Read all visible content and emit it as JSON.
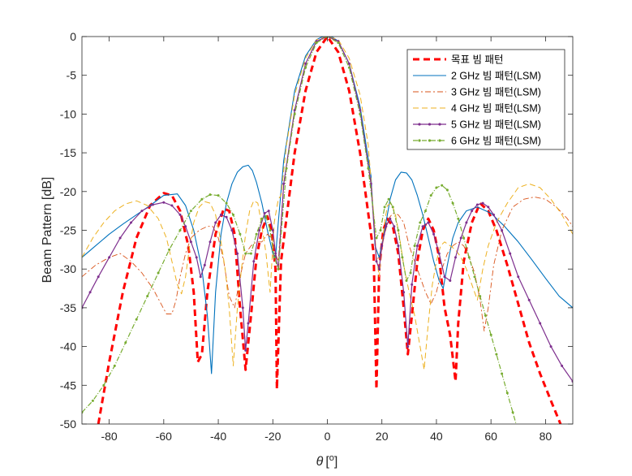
{
  "chart_data": {
    "type": "line",
    "xlabel": "θ [°]",
    "xlabel_parts": {
      "symbol": "θ",
      "open": "[",
      "sup": "o",
      "close": "]"
    },
    "ylabel": "Beam Pattern [dB]",
    "xlim": [
      -90,
      90
    ],
    "ylim": [
      -50,
      0
    ],
    "xticks": [
      -80,
      -60,
      -40,
      -20,
      0,
      20,
      40,
      60,
      80
    ],
    "yticks": [
      0,
      -5,
      -10,
      -15,
      -20,
      -25,
      -30,
      -35,
      -40,
      -45,
      -50
    ],
    "xtick_labels": [
      "-80",
      "-60",
      "-40",
      "-20",
      "0",
      "20",
      "40",
      "60",
      "80"
    ],
    "ytick_labels": [
      "0",
      "-5",
      "-10",
      "-15",
      "-20",
      "-25",
      "-30",
      "-35",
      "-40",
      "-45",
      "-50"
    ],
    "grid": false,
    "legend_position": "top-right",
    "series": [
      {
        "name": "목표 빔 패턴",
        "color": "#ff0000",
        "dash": "8,5",
        "width": 3,
        "marker": "none",
        "x": [
          -84,
          -80,
          -75,
          -70,
          -65,
          -60,
          -57,
          -54,
          -51,
          -49,
          -47.5,
          -46,
          -44,
          -41,
          -38,
          -36,
          -34,
          -32,
          -30,
          -28,
          -26,
          -24,
          -22,
          -20.5,
          -19,
          -18.5,
          -17,
          -12,
          -8,
          -4,
          0,
          4,
          8,
          12,
          17,
          18,
          19,
          20.5,
          22,
          24,
          26,
          28,
          29.5,
          31,
          33,
          35,
          37,
          39,
          41,
          43,
          45,
          47,
          48,
          50,
          53,
          56,
          59,
          62,
          66,
          70,
          74,
          78,
          82,
          85.5
        ],
        "y": [
          -50,
          -42,
          -33,
          -26,
          -21.8,
          -20.2,
          -20.5,
          -22.5,
          -27,
          -33,
          -42,
          -41,
          -33,
          -25.5,
          -22.2,
          -22.5,
          -25.5,
          -35,
          -43,
          -36,
          -28.5,
          -25,
          -23.2,
          -24.8,
          -30,
          -45.5,
          -29,
          -15,
          -7,
          -2,
          0,
          -2,
          -7,
          -15,
          -28,
          -45.5,
          -30,
          -25,
          -23.5,
          -24.5,
          -28,
          -35,
          -41,
          -36,
          -29,
          -25,
          -23.5,
          -25,
          -28.5,
          -35,
          -38.5,
          -44.5,
          -37,
          -29,
          -24,
          -21.5,
          -22.5,
          -25,
          -29.5,
          -34.5,
          -39.5,
          -43.5,
          -47,
          -50
        ]
      },
      {
        "name": "2  GHz 빔 패턴(LSM)",
        "color": "#0072bd",
        "dash": "",
        "width": 1.1,
        "marker": "none",
        "x": [
          -90,
          -85,
          -80,
          -75,
          -70,
          -65,
          -60,
          -55,
          -52,
          -49,
          -46,
          -44,
          -42.5,
          -41,
          -39,
          -37,
          -35,
          -33,
          -31,
          -29,
          -27.5,
          -26,
          -24,
          -22,
          -20,
          -19,
          -18,
          -16,
          -12,
          -8,
          -4,
          -2,
          0,
          2,
          4,
          8,
          12,
          16,
          17.5,
          19,
          21,
          23,
          25,
          27,
          29,
          31,
          33,
          35,
          37,
          39,
          41,
          42.5,
          44,
          46,
          48,
          51,
          55,
          60,
          65,
          70,
          75,
          80,
          85,
          90
        ],
        "y": [
          -28.5,
          -27,
          -25.5,
          -24.2,
          -23,
          -21.8,
          -20.5,
          -20.3,
          -21.8,
          -25,
          -30,
          -36,
          -43.5,
          -33,
          -25.5,
          -21.5,
          -19,
          -17.5,
          -16.8,
          -16.6,
          -17.3,
          -18.8,
          -21.5,
          -25,
          -28,
          -28.5,
          -24,
          -16,
          -7,
          -2.5,
          -0.4,
          -0.05,
          0,
          -0.1,
          -0.6,
          -3.5,
          -9,
          -18,
          -27,
          -28.5,
          -25,
          -21,
          -18.5,
          -17.5,
          -17.6,
          -18.5,
          -20.5,
          -23,
          -26,
          -29,
          -31.5,
          -32.5,
          -29.5,
          -26,
          -24,
          -22.5,
          -22,
          -22.8,
          -24.5,
          -26.5,
          -28.8,
          -31.2,
          -33.5,
          -35
        ]
      },
      {
        "name": "3  GHz 빔 패턴(LSM)",
        "color": "#d95319",
        "dash": "7,3,2,3",
        "width": 0.9,
        "marker": "none",
        "x": [
          -90,
          -85,
          -80,
          -76,
          -72,
          -68,
          -64,
          -61,
          -59,
          -57,
          -55.5,
          -54,
          -52,
          -50,
          -47,
          -44,
          -42,
          -40,
          -38,
          -36,
          -34,
          -32,
          -30,
          -28,
          -26,
          -24,
          -22,
          -20.5,
          -19,
          -18,
          -16,
          -12,
          -8,
          -4,
          0,
          4,
          8,
          12,
          16,
          18,
          19.5,
          21,
          22.5,
          24,
          26,
          28,
          30,
          33,
          36,
          38,
          40,
          42,
          44,
          46,
          48,
          50,
          52,
          54,
          56,
          57.5,
          59,
          61,
          64,
          68,
          72,
          76,
          80,
          84,
          88,
          90
        ],
        "y": [
          -31,
          -29.5,
          -28.5,
          -28,
          -29,
          -30.5,
          -32.5,
          -34.5,
          -35.8,
          -35.8,
          -34,
          -31,
          -28,
          -26,
          -25,
          -24.5,
          -24.5,
          -26,
          -29,
          -33.5,
          -35,
          -31,
          -28,
          -27,
          -26.5,
          -26.5,
          -25.5,
          -26,
          -28,
          -29,
          -19,
          -9.5,
          -3.5,
          -0.6,
          0,
          -0.6,
          -3.5,
          -9.5,
          -19,
          -29,
          -28,
          -25.5,
          -23.5,
          -22.8,
          -23,
          -24,
          -27,
          -30,
          -33,
          -34.5,
          -33,
          -30,
          -28,
          -27,
          -26.5,
          -27,
          -28.5,
          -30.5,
          -34,
          -38,
          -35,
          -29.5,
          -25,
          -22,
          -21,
          -20.7,
          -21,
          -22,
          -23.5,
          -24.5
        ]
      },
      {
        "name": "4  GHz 빔 패턴(LSM)",
        "color": "#edb120",
        "dash": "7,4",
        "width": 1.0,
        "marker": "none",
        "x": [
          -90,
          -86,
          -82,
          -78,
          -74,
          -70,
          -66,
          -62,
          -59,
          -57,
          -55,
          -53.5,
          -52,
          -50.5,
          -49,
          -47,
          -45,
          -43,
          -41,
          -39,
          -37.5,
          -36,
          -34.5,
          -33,
          -31.5,
          -30,
          -28.5,
          -27,
          -25.5,
          -24,
          -22.5,
          -21,
          -19.5,
          -18,
          -17,
          -15,
          -12,
          -8,
          -4,
          0,
          4,
          8,
          12,
          15,
          17,
          18,
          19,
          20,
          21,
          22,
          23.5,
          25,
          26.5,
          28,
          30,
          32,
          34,
          35.5,
          37,
          38.5,
          40,
          41.5,
          43,
          45,
          47,
          49,
          51,
          53,
          55,
          57,
          59,
          62,
          66,
          70,
          74,
          78,
          82,
          86,
          90
        ],
        "y": [
          -28.5,
          -26,
          -24,
          -22.5,
          -21.6,
          -21.2,
          -21.8,
          -23.5,
          -26,
          -29,
          -32,
          -33.2,
          -31,
          -27,
          -24,
          -22,
          -21.3,
          -21.5,
          -23,
          -26.5,
          -30,
          -35,
          -42.5,
          -35,
          -30,
          -25.5,
          -22.5,
          -21.2,
          -21.5,
          -24.5,
          -28,
          -33,
          -24,
          -21,
          -20.5,
          -14,
          -7.5,
          -2.8,
          -0.4,
          0,
          -0.4,
          -2.8,
          -7.5,
          -14,
          -23,
          -28.5,
          -31,
          -27,
          -24,
          -21.8,
          -21.5,
          -23,
          -26,
          -29.5,
          -33,
          -36,
          -40,
          -43,
          -37,
          -32,
          -29,
          -27,
          -26.5,
          -27,
          -27.5,
          -28.5,
          -30,
          -32,
          -34,
          -30,
          -27,
          -24,
          -21.5,
          -19.5,
          -19,
          -19.5,
          -21,
          -23,
          -25.5
        ]
      },
      {
        "name": "5 GHz 빔 패턴(LSM)",
        "color": "#7e2f8e",
        "dash": "",
        "width": 1.2,
        "marker": "dot",
        "x": [
          -90,
          -87,
          -84,
          -80,
          -76,
          -72,
          -68,
          -64,
          -60,
          -57,
          -54,
          -52,
          -50,
          -48,
          -46.5,
          -45,
          -43,
          -41,
          -39,
          -37,
          -35,
          -33,
          -31,
          -30,
          -29,
          -27,
          -25,
          -23,
          -21.5,
          -20,
          -19,
          -18,
          -16,
          -12,
          -8,
          -4,
          0,
          4,
          8,
          12,
          16,
          18,
          19,
          20,
          21.5,
          23,
          24.5,
          26,
          28,
          29.5,
          31,
          33,
          35,
          37,
          39,
          41,
          43,
          45,
          47,
          49,
          51,
          53,
          55,
          57,
          59,
          61,
          64,
          67,
          70,
          74,
          78,
          82,
          86,
          90
        ],
        "y": [
          -35,
          -33,
          -31,
          -28.5,
          -26,
          -24,
          -22.5,
          -21.7,
          -21.4,
          -21.8,
          -23,
          -24.5,
          -26.5,
          -28.5,
          -31,
          -29.5,
          -26.5,
          -24,
          -23,
          -23.3,
          -25,
          -28,
          -35,
          -40.5,
          -37,
          -29,
          -25,
          -22.8,
          -22.5,
          -25,
          -28,
          -30,
          -19,
          -9.5,
          -3.5,
          -0.6,
          0,
          -0.6,
          -3.5,
          -9.5,
          -19,
          -29,
          -30,
          -27,
          -24.5,
          -23.5,
          -24.5,
          -27,
          -33,
          -40,
          -32,
          -27,
          -24.5,
          -24,
          -25.5,
          -28,
          -31,
          -31.5,
          -28.5,
          -26,
          -24,
          -22.5,
          -21.7,
          -21.5,
          -22,
          -23,
          -25,
          -28,
          -31,
          -34,
          -37,
          -40,
          -42.5,
          -44.5
        ]
      },
      {
        "name": "6  GHz 빔 패턴(LSM)",
        "color": "#77ac30",
        "dash": "6,2,1,2",
        "width": 1.2,
        "marker": "dot",
        "x": [
          -90,
          -86,
          -82,
          -78,
          -74,
          -70,
          -66,
          -62,
          -58,
          -54,
          -50,
          -46,
          -43,
          -40,
          -37,
          -34.5,
          -32,
          -30,
          -28,
          -26,
          -24,
          -22.5,
          -21,
          -19.5,
          -18,
          -15,
          -12,
          -8,
          -4,
          0,
          4,
          8,
          12,
          15,
          18,
          19.5,
          21,
          22.5,
          24,
          26,
          27.5,
          29,
          30.5,
          32,
          34,
          36,
          38,
          40,
          42,
          44,
          46,
          48,
          50,
          52,
          54,
          56,
          58,
          60,
          62,
          64,
          66,
          68,
          70
        ],
        "y": [
          -48.5,
          -47,
          -45,
          -42.5,
          -39.5,
          -36.5,
          -33.5,
          -30.5,
          -27.5,
          -25,
          -22.5,
          -21,
          -20.4,
          -20.5,
          -21.5,
          -23,
          -25.5,
          -28,
          -28,
          -25.5,
          -23.5,
          -23.2,
          -25,
          -28.5,
          -30,
          -17,
          -10,
          -4,
          -0.8,
          0,
          -0.8,
          -4,
          -10,
          -17,
          -26,
          -25,
          -22,
          -21,
          -22,
          -25,
          -28.5,
          -31.5,
          -30.5,
          -27,
          -24,
          -22.5,
          -20.5,
          -19.5,
          -19.2,
          -19.8,
          -21.5,
          -23.5,
          -26,
          -28.5,
          -31,
          -33.5,
          -36,
          -38.5,
          -41,
          -43.5,
          -46,
          -48.5,
          -51
        ]
      }
    ]
  }
}
